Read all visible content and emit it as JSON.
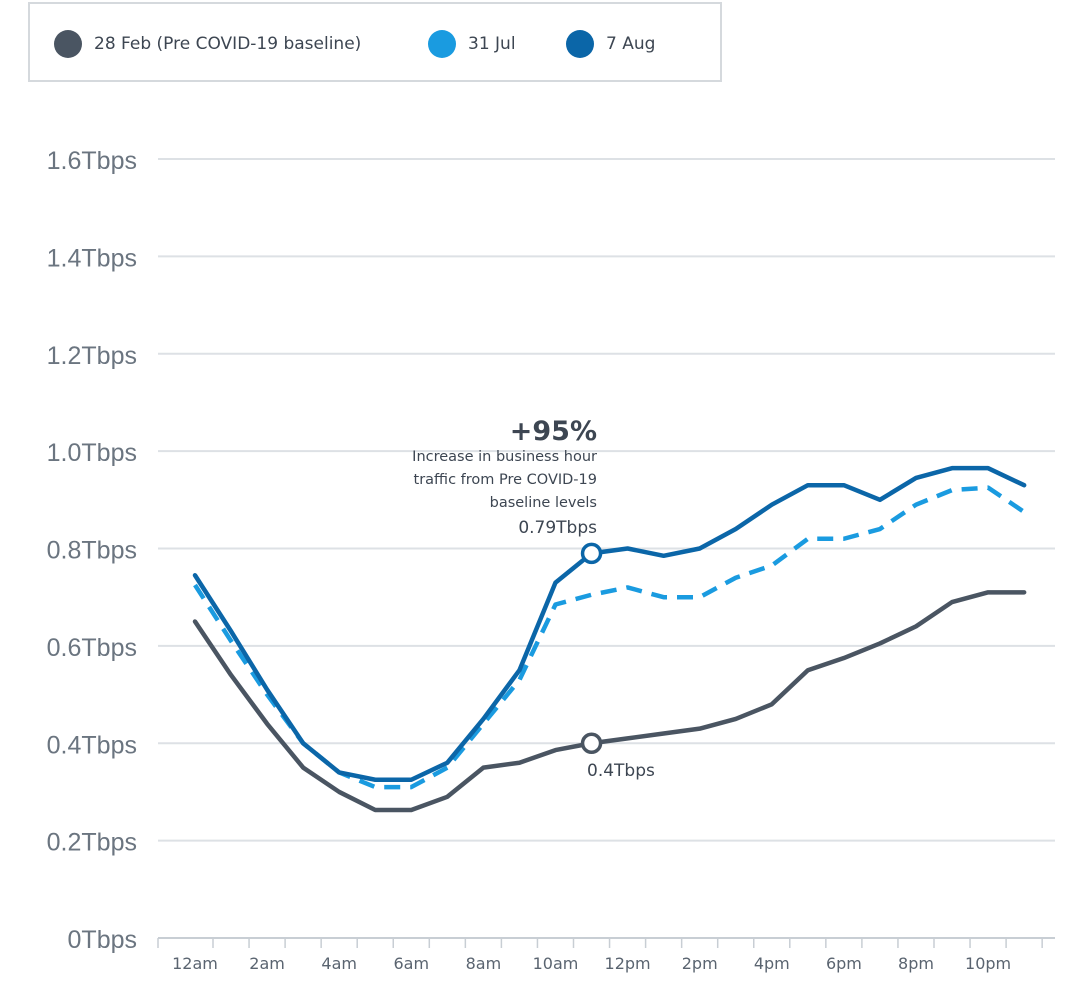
{
  "chart_data": {
    "type": "line",
    "title": "",
    "xlabel": "",
    "ylabel": "",
    "ylim": [
      0,
      1.6
    ],
    "y_ticks": [
      "0Tbps",
      "0.2Tbps",
      "0.4Tbps",
      "0.6Tbps",
      "0.8Tbps",
      "1.0Tbps",
      "1.2Tbps",
      "1.4Tbps",
      "1.6Tbps"
    ],
    "y_tick_values": [
      0,
      0.2,
      0.4,
      0.6,
      0.8,
      1.0,
      1.2,
      1.4,
      1.6
    ],
    "x_tick_labels": [
      "12am",
      "2am",
      "4am",
      "6am",
      "8am",
      "10am",
      "12pm",
      "2pm",
      "4pm",
      "6pm",
      "8pm",
      "10pm"
    ],
    "x": [
      0,
      1,
      2,
      3,
      4,
      5,
      6,
      7,
      8,
      9,
      10,
      11,
      12,
      13,
      14,
      15,
      16,
      17,
      18,
      19,
      20,
      21,
      22,
      23
    ],
    "grid": "horizontal",
    "legend_placement": "top-left",
    "series": [
      {
        "name": "28 Feb (Pre COVID-19 baseline)",
        "color": "#4a5562",
        "style": "solid",
        "values": [
          0.65,
          0.54,
          0.44,
          0.35,
          0.3,
          0.263,
          0.263,
          0.29,
          0.35,
          0.36,
          0.386,
          0.4,
          0.41,
          0.42,
          0.43,
          0.45,
          0.48,
          0.55,
          0.575,
          0.605,
          0.64,
          0.69,
          0.71,
          0.71
        ]
      },
      {
        "name": "31 Jul",
        "color": "#1a9be0",
        "style": "dashed",
        "values": [
          0.725,
          0.61,
          0.5,
          0.4,
          0.34,
          0.31,
          0.31,
          0.35,
          0.44,
          0.53,
          0.685,
          0.705,
          0.72,
          0.7,
          0.7,
          0.74,
          0.765,
          0.82,
          0.82,
          0.84,
          0.89,
          0.92,
          0.925,
          0.875
        ]
      },
      {
        "name": "7 Aug",
        "color": "#0b66a8",
        "style": "solid",
        "values": [
          0.745,
          0.63,
          0.51,
          0.4,
          0.34,
          0.325,
          0.325,
          0.36,
          0.45,
          0.55,
          0.73,
          0.79,
          0.8,
          0.785,
          0.8,
          0.84,
          0.89,
          0.93,
          0.93,
          0.9,
          0.945,
          0.965,
          0.965,
          0.93
        ]
      }
    ],
    "annotations": {
      "headline": "+95%",
      "lines": [
        "Increase in business hour",
        "traffic from Pre COVID-19",
        "baseline levels"
      ],
      "high_label": "0.79Tbps",
      "high_point": {
        "x": 11,
        "y": 0.79
      },
      "low_label": "0.4Tbps",
      "low_point": {
        "x": 11,
        "y": 0.4
      }
    }
  }
}
